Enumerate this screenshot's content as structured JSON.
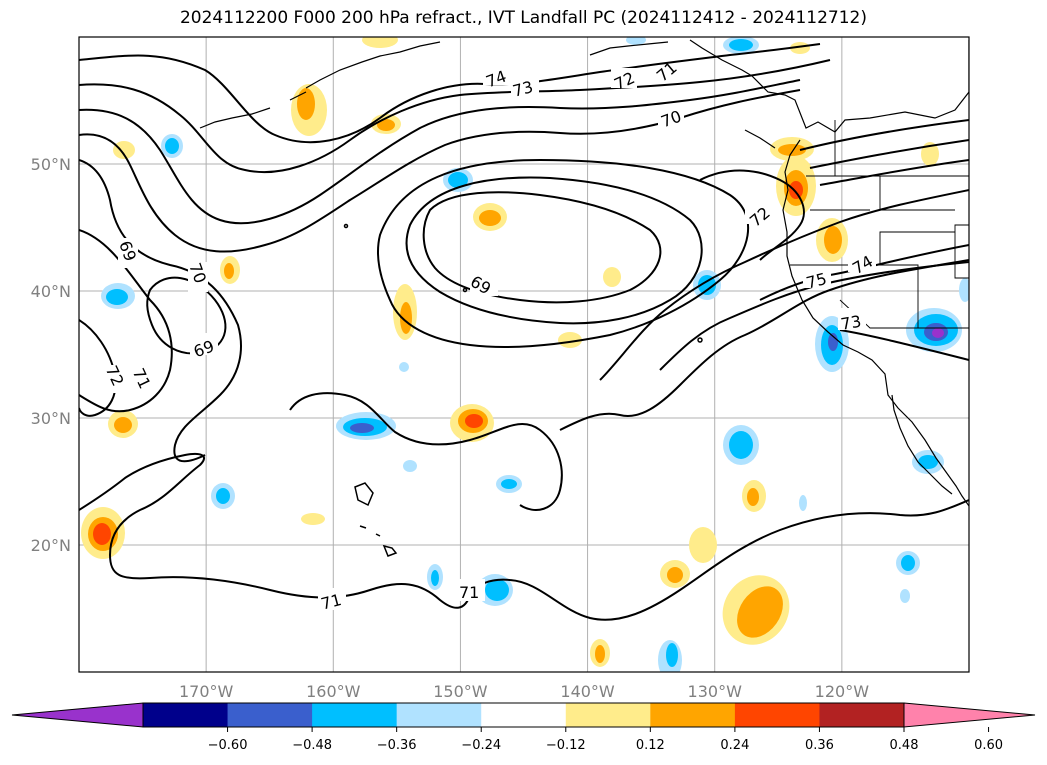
{
  "title": "2024112200 F000 200 hPa refract., IVT Landfall PC (2024112412 - 2024112712)",
  "axes": {
    "lon_labels": [
      "170°W",
      "160°W",
      "150°W",
      "140°W",
      "130°W",
      "120°W"
    ],
    "lon_values": [
      -170,
      -160,
      -150,
      -140,
      -130,
      -120
    ],
    "lat_labels": [
      "50°N",
      "40°N",
      "30°N",
      "20°N"
    ],
    "lat_values": [
      50,
      40,
      30,
      20
    ],
    "lon_range": [
      -180,
      -110
    ],
    "lat_range": [
      10,
      60
    ],
    "grid": true
  },
  "contour_labels": [
    "74",
    "73",
    "72",
    "71",
    "70",
    "69",
    "72",
    "75",
    "74",
    "73",
    "69",
    "70",
    "69",
    "72",
    "71",
    "71",
    "71"
  ],
  "colorbar": {
    "ticks": [
      "−0.60",
      "−0.48",
      "−0.36",
      "−0.24",
      "−0.12",
      "0.12",
      "0.24",
      "0.36",
      "0.48",
      "0.60"
    ],
    "colors": [
      "#9932cc",
      "#00008b",
      "#3a5fcd",
      "#00bfff",
      "#b0e2ff",
      "#ffffff",
      "#ffec8b",
      "#ffa500",
      "#ff4500",
      "#b22222",
      "#ff82ab"
    ]
  }
}
